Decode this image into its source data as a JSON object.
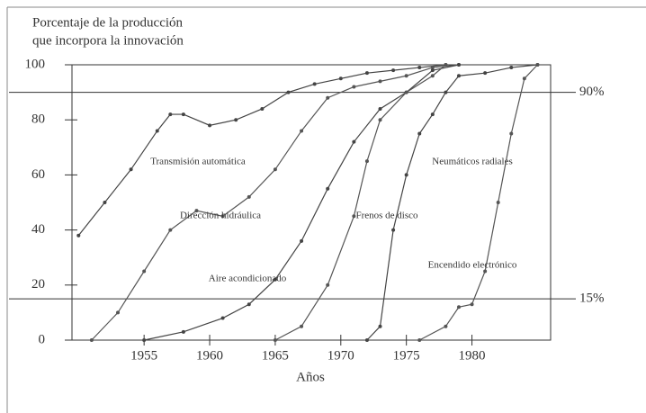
{
  "chart_data": {
    "type": "line",
    "title": "Porcentaje de la producción",
    "subtitle": "que incorpora la innovación",
    "x_label": "Años",
    "xlim": [
      1949.5,
      1986
    ],
    "xticks": [
      1955,
      1960,
      1965,
      1970,
      1975,
      1980
    ],
    "ylim": [
      0,
      100
    ],
    "yticks": [
      0,
      20,
      40,
      60,
      80,
      100
    ],
    "reference_lines": [
      {
        "value": 90,
        "label": "90%"
      },
      {
        "value": 15,
        "label": "15%"
      }
    ],
    "series": [
      {
        "name": "Transmisión automática",
        "color": "#444444",
        "x": [
          1950,
          1952,
          1954,
          1956,
          1957,
          1958,
          1960,
          1962,
          1964,
          1966,
          1968,
          1970,
          1972,
          1974,
          1976,
          1978
        ],
        "values": [
          38,
          50,
          62,
          76,
          82,
          82,
          78,
          80,
          84,
          90,
          93,
          95,
          97,
          98,
          99,
          100
        ]
      },
      {
        "name": "Dirección hidráulica",
        "color": "#555555",
        "x": [
          1951,
          1953,
          1955,
          1957,
          1959,
          1961,
          1963,
          1965,
          1967,
          1969,
          1971,
          1973,
          1975,
          1977,
          1979
        ],
        "values": [
          0,
          10,
          25,
          40,
          47,
          45,
          52,
          62,
          76,
          88,
          92,
          94,
          96,
          99,
          100
        ]
      },
      {
        "name": "Aire acondicionado",
        "color": "#444444",
        "x": [
          1955,
          1958,
          1961,
          1963,
          1965,
          1967,
          1969,
          1971,
          1973,
          1975,
          1977,
          1979
        ],
        "values": [
          0,
          3,
          8,
          13,
          22,
          36,
          55,
          72,
          84,
          90,
          98,
          100
        ]
      },
      {
        "name": "Frenos de disco",
        "color": "#555555",
        "x": [
          1965,
          1967,
          1969,
          1971,
          1972,
          1973,
          1975,
          1977,
          1978
        ],
        "values": [
          0,
          5,
          20,
          45,
          65,
          80,
          90,
          96,
          100
        ]
      },
      {
        "name": "Neumáticos radiales",
        "color": "#444444",
        "x": [
          1972,
          1973,
          1974,
          1975,
          1976,
          1977,
          1978,
          1979,
          1981,
          1983,
          1985
        ],
        "values": [
          0,
          5,
          40,
          60,
          75,
          82,
          90,
          96,
          97,
          99,
          100
        ]
      },
      {
        "name": "Encendido electrónico",
        "color": "#555555",
        "x": [
          1976,
          1978,
          1979,
          1980,
          1981,
          1982,
          1983,
          1984,
          1985
        ],
        "values": [
          0,
          5,
          12,
          13,
          25,
          50,
          75,
          95,
          100
        ]
      }
    ]
  }
}
